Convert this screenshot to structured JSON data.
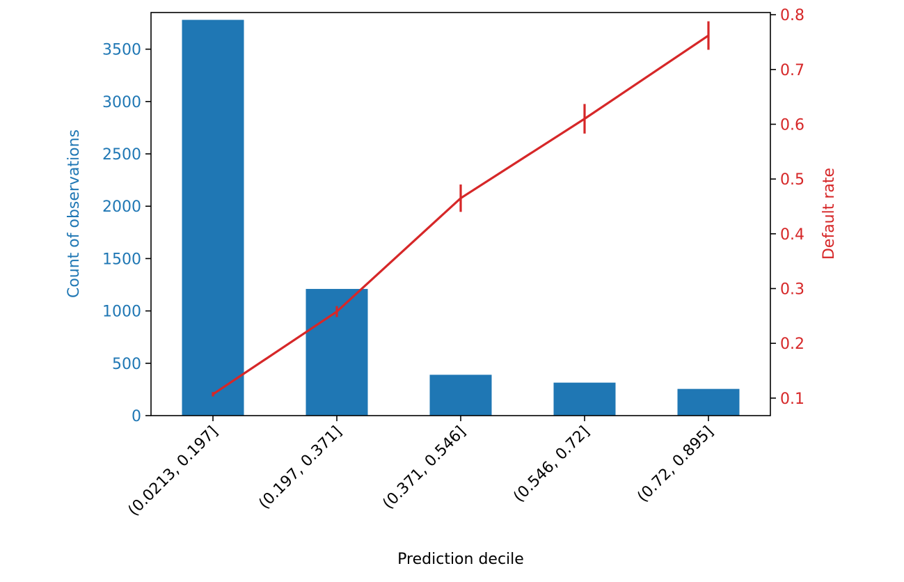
{
  "chart_data": {
    "type": "bar",
    "xlabel": "Prediction decile",
    "ylabel": "Count of observations",
    "y2label": "Default rate",
    "categories": [
      "(0.0213, 0.197]",
      "(0.197, 0.371]",
      "(0.371, 0.546]",
      "(0.546, 0.72]",
      "(0.72, 0.895]"
    ],
    "bar_series": {
      "values": [
        3780,
        1210,
        390,
        315,
        255
      ],
      "color": "#1f77b4"
    },
    "line_series": {
      "values": [
        0.107,
        0.258,
        0.465,
        0.61,
        0.762
      ],
      "error": [
        0.004,
        0.01,
        0.025,
        0.027,
        0.026
      ],
      "color": "#d62728"
    },
    "ylim": [
      0,
      3850
    ],
    "y2lim": [
      0.068,
      0.804
    ],
    "yticks": [
      0,
      500,
      1000,
      1500,
      2000,
      2500,
      3000,
      3500
    ],
    "y2ticks": [
      0.1,
      0.2,
      0.3,
      0.4,
      0.5,
      0.6,
      0.7,
      0.8
    ],
    "grid": false,
    "legend": "none"
  }
}
